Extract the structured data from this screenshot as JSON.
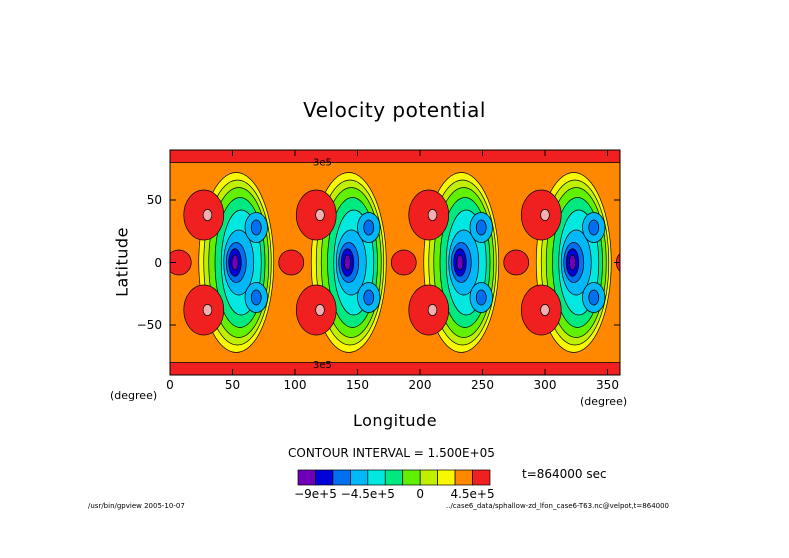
{
  "chart_data": {
    "type": "heatmap",
    "title": "Velocity potential",
    "xlabel": "Longitude",
    "ylabel": "Latitude",
    "x_unit_left": "(degree)",
    "x_unit_right": "(degree)",
    "xlim": [
      0,
      360
    ],
    "ylim": [
      -90,
      90
    ],
    "x_ticks": [
      {
        "value": 0,
        "label": "0"
      },
      {
        "value": 50,
        "label": "50"
      },
      {
        "value": 100,
        "label": "100"
      },
      {
        "value": 150,
        "label": "150"
      },
      {
        "value": 200,
        "label": "200"
      },
      {
        "value": 250,
        "label": "250"
      },
      {
        "value": 300,
        "label": "300"
      },
      {
        "value": 350,
        "label": "350"
      }
    ],
    "y_ticks": [
      {
        "value": 50,
        "label": "50"
      },
      {
        "value": 0,
        "label": "0"
      },
      {
        "value": -50,
        "label": "−50"
      }
    ],
    "contour_interval_text": "CONTOUR INTERVAL = 1.500E+05",
    "time_text": "t=864000 sec",
    "contour_labels": [
      {
        "text": "3e5",
        "lon": 122,
        "lat": 81
      },
      {
        "text": "3e5",
        "lon": 122,
        "lat": -81
      }
    ],
    "wave_centers_lon": [
      55,
      145,
      235,
      325
    ],
    "colorbar": {
      "levels": [
        -1050000.0,
        -900000.0,
        -750000.0,
        -600000.0,
        -450000.0,
        -300000.0,
        -150000.0,
        0,
        150000.0,
        300000.0,
        450000.0,
        600000.0
      ],
      "colors": [
        "#7000b8",
        "#0000d8",
        "#0070f0",
        "#00b8f8",
        "#00e8e0",
        "#00e880",
        "#60f000",
        "#c0f000",
        "#f8f800",
        "#ff8800",
        "#f02020"
      ],
      "tick_labels": [
        {
          "value": -900000.0,
          "label": "−9e+5"
        },
        {
          "value": -450000.0,
          "label": "−4.5e+5"
        },
        {
          "value": 0,
          "label": "0"
        },
        {
          "value": 450000.0,
          "label": "4.5e+5"
        }
      ],
      "pink_color": "#f0b0b0"
    },
    "footer_left": "/usr/bin/gpview  2005-10-07",
    "footer_right": "../case6_data/sphallow-zd_lfon_case6-T63.nc@velpot,t=864000"
  }
}
